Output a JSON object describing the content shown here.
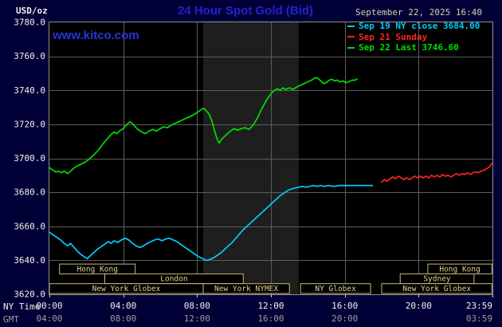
{
  "header": {
    "title": "24 Hour Spot Gold (Bid)",
    "datetime": "September 22, 2025 16:40",
    "watermark": "www.kitco.com"
  },
  "legend": {
    "items": [
      {
        "label": "Sep 19 NY close 3684.00",
        "color": "#00ccff"
      },
      {
        "label": "Sep 21 Sunday",
        "color": "#ff2222"
      },
      {
        "label": "Sep 22 Last 3746.60",
        "color": "#00dd00"
      }
    ]
  },
  "colors": {
    "page_bg": "#000036",
    "plot_bg": "#000000",
    "band": "#1e1e1e",
    "grid": "#5c5c5c",
    "border": "#909090",
    "title_blue": "#2222cc",
    "watermark_blue": "#2535dd",
    "date_text": "#d6d2a8",
    "axis_text": "#f0f0f0",
    "gmt_text": "#9c9c9c",
    "session_line": "#c8ba76",
    "session_text": "#ddd190",
    "tick_mark": "#cccccc"
  },
  "chart_data": {
    "type": "line",
    "title": "24 Hour Spot Gold (Bid)",
    "ylabel": "USD/oz",
    "xlabel_rows": {
      "row1": "NY Time",
      "row2": "GMT"
    },
    "ylim": [
      3620,
      3780
    ],
    "xlim": [
      0,
      24
    ],
    "grid": true,
    "legend_position": "top-right",
    "highlight_band_hours": [
      8.33,
      13.5
    ],
    "y_ticks": [
      {
        "value": 3780,
        "label": "3780.0"
      },
      {
        "value": 3760,
        "label": "3760.0"
      },
      {
        "value": 3740,
        "label": "3740.0"
      },
      {
        "value": 3720,
        "label": "3720.0"
      },
      {
        "value": 3700,
        "label": "3700.0"
      },
      {
        "value": 3680,
        "label": "3680.0"
      },
      {
        "value": 3660,
        "label": "3660.0"
      },
      {
        "value": 3640,
        "label": "3640.0"
      },
      {
        "value": 3620,
        "label": "3620.0"
      }
    ],
    "x_ticks_ny": [
      {
        "hour": 0,
        "label": "00:00"
      },
      {
        "hour": 4,
        "label": "04:00"
      },
      {
        "hour": 8,
        "label": "08:00"
      },
      {
        "hour": 12,
        "label": "12:00"
      },
      {
        "hour": 16,
        "label": "16:00"
      },
      {
        "hour": 20,
        "label": "20:00"
      },
      {
        "hour": 24,
        "label": "23:59"
      }
    ],
    "x_ticks_gmt": [
      {
        "hour": 0,
        "label": "04:00"
      },
      {
        "hour": 4,
        "label": "08:00"
      },
      {
        "hour": 8,
        "label": "12:00"
      },
      {
        "hour": 12,
        "label": "16:00"
      },
      {
        "hour": 16,
        "label": "20:00"
      },
      {
        "hour": 24,
        "label": "03:59"
      }
    ],
    "sessions": [
      {
        "row": 0,
        "start": 0.55,
        "end": 4.65,
        "label": "Hong Kong"
      },
      {
        "row": 0,
        "start": 20.5,
        "end": 23.97,
        "label": "Hong Kong"
      },
      {
        "row": 1,
        "start": 3.0,
        "end": 10.5,
        "label": "London"
      },
      {
        "row": 1,
        "start": 19.0,
        "end": 23.0,
        "label": "Sydney"
      },
      {
        "row": 2,
        "start": 0.0,
        "end": 8.33,
        "label": "New York Globex"
      },
      {
        "row": 2,
        "start": 8.33,
        "end": 13.0,
        "label": "New York NYMEX"
      },
      {
        "row": 2,
        "start": 13.6,
        "end": 17.4,
        "label": "NY Globex"
      },
      {
        "row": 2,
        "start": 18.0,
        "end": 23.97,
        "label": "New York Globex"
      }
    ],
    "series": [
      {
        "id": "sep19-ny-close",
        "name": "Sep 19 NY close",
        "close": 3684.0,
        "color": "#00ccff",
        "points": [
          [
            0,
            3656.5
          ],
          [
            0.2,
            3655
          ],
          [
            0.4,
            3653.5
          ],
          [
            0.6,
            3652
          ],
          [
            0.8,
            3650
          ],
          [
            1.0,
            3648.5
          ],
          [
            1.15,
            3650
          ],
          [
            1.3,
            3648
          ],
          [
            1.5,
            3645.5
          ],
          [
            1.7,
            3643.5
          ],
          [
            1.9,
            3642
          ],
          [
            2.05,
            3641
          ],
          [
            2.2,
            3642.5
          ],
          [
            2.4,
            3644.5
          ],
          [
            2.6,
            3646.5
          ],
          [
            2.8,
            3648
          ],
          [
            3.0,
            3649.5
          ],
          [
            3.2,
            3651
          ],
          [
            3.35,
            3650
          ],
          [
            3.5,
            3651.5
          ],
          [
            3.7,
            3650.5
          ],
          [
            3.9,
            3652
          ],
          [
            4.1,
            3653
          ],
          [
            4.3,
            3652
          ],
          [
            4.5,
            3650
          ],
          [
            4.7,
            3648.5
          ],
          [
            4.9,
            3647.5
          ],
          [
            5.1,
            3648.5
          ],
          [
            5.3,
            3650
          ],
          [
            5.5,
            3651
          ],
          [
            5.7,
            3652
          ],
          [
            5.9,
            3652.5
          ],
          [
            6.1,
            3651.5
          ],
          [
            6.3,
            3652.5
          ],
          [
            6.5,
            3653
          ],
          [
            6.7,
            3652
          ],
          [
            6.9,
            3651
          ],
          [
            7.1,
            3649.5
          ],
          [
            7.3,
            3648
          ],
          [
            7.5,
            3646.5
          ],
          [
            7.7,
            3645
          ],
          [
            7.9,
            3643.5
          ],
          [
            8.1,
            3642
          ],
          [
            8.3,
            3641
          ],
          [
            8.5,
            3640
          ],
          [
            8.7,
            3640.5
          ],
          [
            8.9,
            3641.5
          ],
          [
            9.1,
            3643
          ],
          [
            9.3,
            3644.5
          ],
          [
            9.5,
            3646.5
          ],
          [
            9.7,
            3648.5
          ],
          [
            9.9,
            3650.5
          ],
          [
            10.1,
            3653
          ],
          [
            10.3,
            3655.5
          ],
          [
            10.5,
            3658
          ],
          [
            10.7,
            3660
          ],
          [
            10.9,
            3662
          ],
          [
            11.1,
            3664
          ],
          [
            11.3,
            3666
          ],
          [
            11.5,
            3668
          ],
          [
            11.7,
            3670
          ],
          [
            11.9,
            3672
          ],
          [
            12.1,
            3674
          ],
          [
            12.3,
            3676
          ],
          [
            12.5,
            3678
          ],
          [
            12.7,
            3679.5
          ],
          [
            12.9,
            3681
          ],
          [
            13.1,
            3682
          ],
          [
            13.3,
            3682.5
          ],
          [
            13.5,
            3683
          ],
          [
            13.7,
            3683.5
          ],
          [
            13.9,
            3683
          ],
          [
            14.1,
            3683.5
          ],
          [
            14.3,
            3684
          ],
          [
            14.5,
            3683.5
          ],
          [
            14.7,
            3684
          ],
          [
            14.9,
            3683.5
          ],
          [
            15.1,
            3684
          ],
          [
            15.4,
            3683.5
          ],
          [
            15.7,
            3684
          ],
          [
            16.0,
            3684
          ],
          [
            16.3,
            3684
          ],
          [
            16.6,
            3684
          ],
          [
            16.9,
            3684
          ],
          [
            17.2,
            3684
          ],
          [
            17.5,
            3684
          ]
        ]
      },
      {
        "id": "sep21-sunday",
        "name": "Sep 21 Sunday",
        "color": "#ff2222",
        "points": [
          [
            18.0,
            3686
          ],
          [
            18.15,
            3687.5
          ],
          [
            18.3,
            3686.5
          ],
          [
            18.45,
            3688
          ],
          [
            18.6,
            3689
          ],
          [
            18.75,
            3688
          ],
          [
            18.9,
            3689.5
          ],
          [
            19.05,
            3688.5
          ],
          [
            19.2,
            3687.5
          ],
          [
            19.35,
            3688.5
          ],
          [
            19.5,
            3687.5
          ],
          [
            19.65,
            3688.5
          ],
          [
            19.8,
            3689.5
          ],
          [
            19.95,
            3688.5
          ],
          [
            20.1,
            3689.5
          ],
          [
            20.25,
            3688.5
          ],
          [
            20.4,
            3689.5
          ],
          [
            20.55,
            3688.5
          ],
          [
            20.7,
            3690
          ],
          [
            20.85,
            3689
          ],
          [
            21.0,
            3690
          ],
          [
            21.15,
            3689
          ],
          [
            21.3,
            3690.5
          ],
          [
            21.45,
            3689.5
          ],
          [
            21.6,
            3690
          ],
          [
            21.75,
            3689
          ],
          [
            21.9,
            3690
          ],
          [
            22.05,
            3691
          ],
          [
            22.2,
            3690
          ],
          [
            22.35,
            3691
          ],
          [
            22.5,
            3690.5
          ],
          [
            22.65,
            3691.5
          ],
          [
            22.8,
            3690.5
          ],
          [
            22.95,
            3691.5
          ],
          [
            23.1,
            3692
          ],
          [
            23.25,
            3691.5
          ],
          [
            23.4,
            3692.5
          ],
          [
            23.55,
            3693
          ],
          [
            23.7,
            3694
          ],
          [
            23.85,
            3695
          ],
          [
            23.97,
            3697
          ]
        ]
      },
      {
        "id": "sep22-current",
        "name": "Sep 22",
        "last": 3746.6,
        "color": "#00dd00",
        "points": [
          [
            0,
            3694.5
          ],
          [
            0.2,
            3693
          ],
          [
            0.35,
            3692
          ],
          [
            0.5,
            3692.5
          ],
          [
            0.65,
            3691.5
          ],
          [
            0.8,
            3692.5
          ],
          [
            1.0,
            3691
          ],
          [
            1.15,
            3692.5
          ],
          [
            1.3,
            3694
          ],
          [
            1.5,
            3695.5
          ],
          [
            1.7,
            3696.5
          ],
          [
            1.9,
            3697.5
          ],
          [
            2.1,
            3699
          ],
          [
            2.3,
            3701
          ],
          [
            2.5,
            3703
          ],
          [
            2.7,
            3705.5
          ],
          [
            2.9,
            3708.5
          ],
          [
            3.1,
            3711
          ],
          [
            3.3,
            3713.5
          ],
          [
            3.5,
            3715.5
          ],
          [
            3.65,
            3714.5
          ],
          [
            3.8,
            3716
          ],
          [
            4.0,
            3717.5
          ],
          [
            4.2,
            3720
          ],
          [
            4.35,
            3721.5
          ],
          [
            4.5,
            3720.5
          ],
          [
            4.65,
            3718.5
          ],
          [
            4.8,
            3717
          ],
          [
            5.0,
            3715.5
          ],
          [
            5.2,
            3714.5
          ],
          [
            5.4,
            3716
          ],
          [
            5.6,
            3717
          ],
          [
            5.8,
            3716
          ],
          [
            6.0,
            3717.5
          ],
          [
            6.2,
            3718.5
          ],
          [
            6.4,
            3718
          ],
          [
            6.6,
            3719.5
          ],
          [
            6.8,
            3720.5
          ],
          [
            7.0,
            3721.5
          ],
          [
            7.2,
            3722.5
          ],
          [
            7.4,
            3723.5
          ],
          [
            7.6,
            3724.5
          ],
          [
            7.8,
            3725.5
          ],
          [
            8.0,
            3727
          ],
          [
            8.2,
            3728.5
          ],
          [
            8.35,
            3729.5
          ],
          [
            8.5,
            3728
          ],
          [
            8.65,
            3726
          ],
          [
            8.8,
            3722
          ],
          [
            8.95,
            3716
          ],
          [
            9.1,
            3711
          ],
          [
            9.2,
            3709
          ],
          [
            9.35,
            3711.5
          ],
          [
            9.5,
            3713
          ],
          [
            9.65,
            3714.5
          ],
          [
            9.8,
            3716
          ],
          [
            10.0,
            3717.5
          ],
          [
            10.2,
            3716.5
          ],
          [
            10.4,
            3717.5
          ],
          [
            10.6,
            3718
          ],
          [
            10.8,
            3717
          ],
          [
            11.0,
            3719
          ],
          [
            11.15,
            3721.5
          ],
          [
            11.3,
            3724.5
          ],
          [
            11.45,
            3728
          ],
          [
            11.6,
            3731
          ],
          [
            11.75,
            3734
          ],
          [
            11.9,
            3736.5
          ],
          [
            12.05,
            3738.5
          ],
          [
            12.2,
            3740
          ],
          [
            12.35,
            3741
          ],
          [
            12.5,
            3740
          ],
          [
            12.65,
            3741.5
          ],
          [
            12.8,
            3740.5
          ],
          [
            13.0,
            3741.5
          ],
          [
            13.2,
            3740.5
          ],
          [
            13.4,
            3742
          ],
          [
            13.6,
            3743
          ],
          [
            13.8,
            3744
          ],
          [
            14.0,
            3745
          ],
          [
            14.2,
            3746
          ],
          [
            14.4,
            3747.5
          ],
          [
            14.55,
            3747
          ],
          [
            14.7,
            3745.5
          ],
          [
            14.85,
            3744
          ],
          [
            15.0,
            3744.5
          ],
          [
            15.15,
            3746
          ],
          [
            15.3,
            3746.5
          ],
          [
            15.45,
            3745.5
          ],
          [
            15.6,
            3746
          ],
          [
            15.75,
            3745
          ],
          [
            15.9,
            3745.5
          ],
          [
            16.05,
            3744.5
          ],
          [
            16.2,
            3745
          ],
          [
            16.4,
            3746
          ],
          [
            16.55,
            3746
          ],
          [
            16.67,
            3746.6
          ]
        ]
      }
    ]
  }
}
